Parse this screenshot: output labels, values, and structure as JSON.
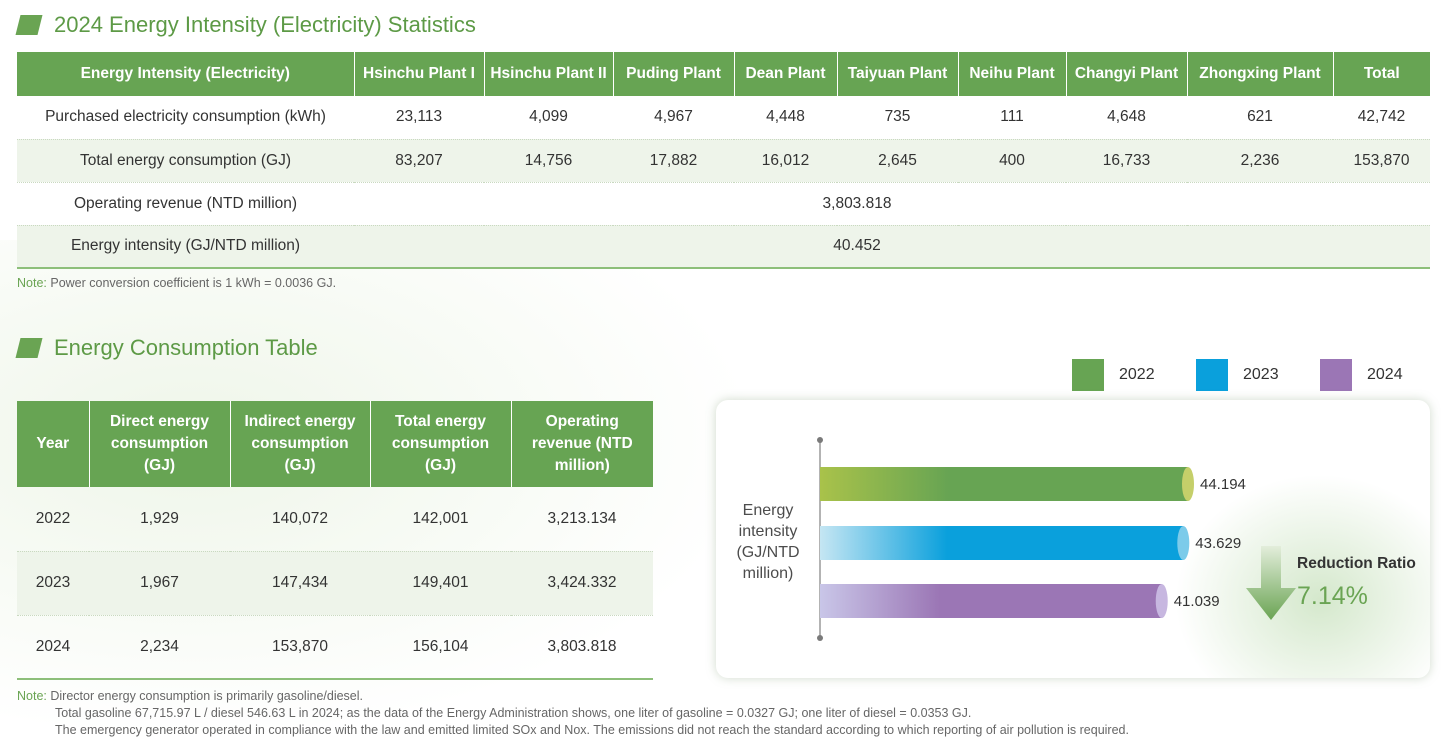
{
  "section1": {
    "title": "2024 Energy Intensity (Electricity) Statistics",
    "headers": [
      "Energy Intensity (Electricity)",
      "Hsinchu Plant I",
      "Hsinchu Plant II",
      "Puding Plant",
      "Dean Plant",
      "Taiyuan Plant",
      "Neihu Plant",
      "Changyi Plant",
      "Zhongxing Plant",
      "Total"
    ],
    "rows": [
      {
        "label": "Purchased electricity consumption (kWh)",
        "values": [
          "23,113",
          "4,099",
          "4,967",
          "4,448",
          "735",
          "111",
          "4,648",
          "621",
          "42,742"
        ]
      },
      {
        "label": "Total energy consumption (GJ)",
        "values": [
          "83,207",
          "14,756",
          "17,882",
          "16,012",
          "2,645",
          "400",
          "16,733",
          "2,236",
          "153,870"
        ]
      }
    ],
    "revenue_label": "Operating revenue (NTD million)",
    "revenue_value": "3,803.818",
    "intensity_label": "Energy intensity (GJ/NTD million)",
    "intensity_value": "40.452",
    "note_label": "Note:",
    "note_text": " Power conversion coefficient is 1 kWh = 0.0036 GJ."
  },
  "section2": {
    "title": "Energy Consumption Table",
    "headers": [
      "Year",
      "Direct energy consumption (GJ)",
      "Indirect energy consumption (GJ)",
      "Total energy consumption (GJ)",
      "Operating revenue (NTD million)"
    ],
    "rows": [
      [
        "2022",
        "1,929",
        "140,072",
        "142,001",
        "3,213.134"
      ],
      [
        "2023",
        "1,967",
        "147,434",
        "149,401",
        "3,424.332"
      ],
      [
        "2024",
        "2,234",
        "153,870",
        "156,104",
        "3,803.818"
      ]
    ],
    "note_label": "Note:",
    "note_lines": [
      " Director energy consumption is primarily gasoline/diesel.",
      "Total gasoline 67,715.97 L / diesel 546.63 L in 2024; as the data of the Energy Administration shows, one liter of gasoline = 0.0327 GJ; one liter of diesel = 0.0353 GJ.",
      "The emergency generator operated in compliance with the law and emitted limited SOx and Nox. The emissions did not reach the standard according to which reporting of air pollution is required."
    ]
  },
  "colors": {
    "green": "#67a453",
    "blue": "#0aa0dc",
    "purple": "#9b76b5"
  },
  "chart_data": {
    "type": "bar",
    "orientation": "horizontal",
    "ylabel": "Energy intensity (GJ/NTD million)",
    "categories": [
      "2022",
      "2023",
      "2024"
    ],
    "values": [
      44.194,
      43.629,
      41.039
    ],
    "value_labels": [
      "44.194",
      "43.629",
      "41.039"
    ],
    "series_colors": [
      "#67a453",
      "#0aa0dc",
      "#9b76b5"
    ],
    "legend": [
      "2022",
      "2023",
      "2024"
    ],
    "legend_placement": "top-right",
    "grid": false,
    "reduction_label": "Reduction Ratio",
    "reduction_value": "7.14%"
  }
}
